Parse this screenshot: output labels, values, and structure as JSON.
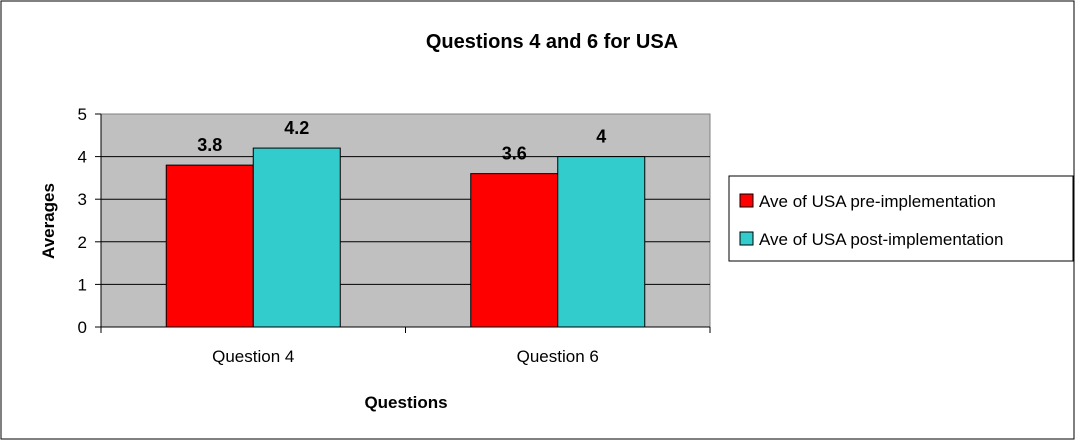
{
  "chart_data": {
    "type": "bar",
    "title": "Questions 4 and 6 for USA",
    "xlabel": "Questions",
    "ylabel": "Averages",
    "categories": [
      "Question 4",
      "Question 6"
    ],
    "series": [
      {
        "name": "Ave of USA pre-implementation",
        "values": [
          3.8,
          3.6
        ],
        "labels": [
          "3.8",
          "3.6"
        ],
        "color": "#ff0000"
      },
      {
        "name": "Ave of USA post-implementation",
        "values": [
          4.2,
          4.0
        ],
        "labels": [
          "4.2",
          "4"
        ],
        "color": "#33cccc"
      }
    ],
    "ylim": [
      0,
      5
    ],
    "yticks": [
      "0",
      "1",
      "2",
      "3",
      "4",
      "5"
    ],
    "grid": true,
    "plot_background": "#c0c0c0",
    "legend_position": "right"
  }
}
